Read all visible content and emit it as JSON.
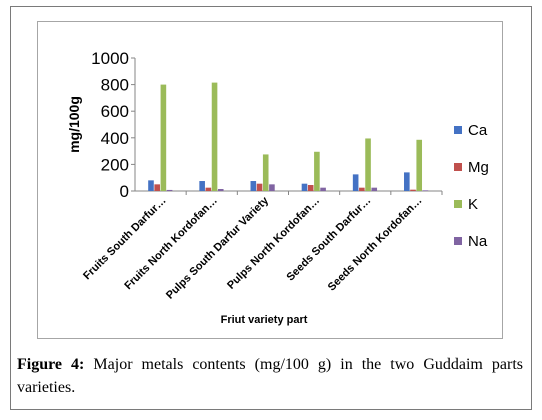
{
  "chart_data": {
    "type": "bar",
    "xlabel": "Friut variety part",
    "ylabel": "mg/100g",
    "ylim": [
      0,
      1000
    ],
    "yticks": [
      0,
      200,
      400,
      600,
      800,
      1000
    ],
    "grid": false,
    "legend_position": "right",
    "categories": [
      "Fruits South Darfur…",
      "Fruits North Kordofan…",
      "Pulps South Darfur Variety",
      "Pulps North Kordofan…",
      "Seeds South Darfur…",
      "Seeds North Kordofan…"
    ],
    "series": [
      {
        "name": "Ca",
        "color": "#4472C4",
        "values": [
          80,
          75,
          75,
          55,
          125,
          140
        ]
      },
      {
        "name": "Mg",
        "color": "#C0504D",
        "values": [
          50,
          25,
          55,
          45,
          25,
          10
        ]
      },
      {
        "name": "K",
        "color": "#9BBB59",
        "values": [
          800,
          815,
          275,
          295,
          395,
          385
        ]
      },
      {
        "name": "Na",
        "color": "#8064A2",
        "values": [
          8,
          15,
          50,
          25,
          25,
          5
        ]
      }
    ]
  },
  "caption": {
    "label": "Figure 4:",
    "text": " Major metals contents (mg/100 g) in the two Guddaim parts varieties."
  }
}
